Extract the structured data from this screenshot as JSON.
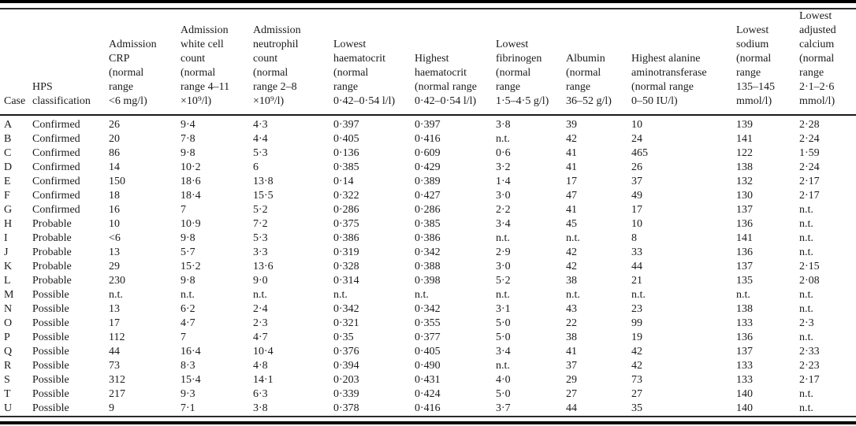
{
  "text_color": "#1b1b1b",
  "rule_color": "#000000",
  "not_tested_abbreviation": "n.t.",
  "table": {
    "columns": [
      {
        "name": "case",
        "lines": [
          "Case"
        ]
      },
      {
        "name": "hps-classification",
        "lines": [
          "HPS",
          "classification"
        ]
      },
      {
        "name": "admission-crp",
        "lines": [
          "Admission",
          "CRP",
          "(normal",
          "range",
          "<6 mg/l)"
        ]
      },
      {
        "name": "admission-white-cell-count",
        "lines": [
          "Admission",
          "white cell",
          "count",
          "(normal",
          "range 4–11",
          "×10⁹/l)"
        ]
      },
      {
        "name": "admission-neutrophil-count",
        "lines": [
          "Admission",
          "neutrophil",
          "count",
          "(normal",
          "range 2–8",
          "×10⁹/l)"
        ]
      },
      {
        "name": "lowest-haematocrit",
        "lines": [
          "Lowest",
          "haematocrit",
          "(normal",
          "range",
          "0·42–0·54 l/l)"
        ]
      },
      {
        "name": "highest-haematocrit",
        "lines": [
          "Highest",
          "haematocrit",
          "(normal range",
          "0·42–0·54 l/l)"
        ]
      },
      {
        "name": "lowest-fibrinogen",
        "lines": [
          "Lowest",
          "fibrinogen",
          "(normal",
          "range",
          "1·5–4·5 g/l)"
        ]
      },
      {
        "name": "albumin",
        "lines": [
          "Albumin",
          "(normal",
          "range",
          "36–52 g/l)"
        ]
      },
      {
        "name": "highest-alanine-aminotransferase",
        "lines": [
          "Highest alanine",
          "aminotransferase",
          "(normal range",
          "0–50 IU/l)"
        ]
      },
      {
        "name": "lowest-sodium",
        "lines": [
          "Lowest",
          "sodium",
          "(normal",
          "range",
          "135–145",
          "mmol/l)"
        ]
      },
      {
        "name": "lowest-adjusted-calcium",
        "lines": [
          "Lowest",
          "adjusted",
          "calcium",
          "(normal",
          "range",
          "2·1–2·6",
          "mmol/l)"
        ]
      }
    ],
    "rows": [
      [
        "A",
        "Confirmed",
        "26",
        "9·4",
        "4·3",
        "0·397",
        "0·397",
        "3·8",
        "39",
        "10",
        "139",
        "2·28"
      ],
      [
        "B",
        "Confirmed",
        "20",
        "7·8",
        "4·4",
        "0·405",
        "0·416",
        "n.t.",
        "42",
        "24",
        "141",
        "2·24"
      ],
      [
        "C",
        "Confirmed",
        "86",
        "9·8",
        "5·3",
        "0·136",
        "0·609",
        "0·6",
        "41",
        "465",
        "122",
        "1·59"
      ],
      [
        "D",
        "Confirmed",
        "14",
        "10·2",
        "6",
        "0·385",
        "0·429",
        "3·2",
        "41",
        "26",
        "138",
        "2·24"
      ],
      [
        "E",
        "Confirmed",
        "150",
        "18·6",
        "13·8",
        "0·14",
        "0·389",
        "1·4",
        "17",
        "37",
        "132",
        "2·17"
      ],
      [
        "F",
        "Confirmed",
        "18",
        "18·4",
        "15·5",
        "0·322",
        "0·427",
        "3·0",
        "47",
        "49",
        "130",
        "2·17"
      ],
      [
        "G",
        "Confirmed",
        "16",
        "7",
        "5·2",
        "0·286",
        "0·286",
        "2·2",
        "41",
        "17",
        "137",
        "n.t."
      ],
      [
        "H",
        "Probable",
        "10",
        "10·9",
        "7·2",
        "0·375",
        "0·385",
        "3·4",
        "45",
        "10",
        "136",
        "n.t."
      ],
      [
        "I",
        "Probable",
        "<6",
        "9·8",
        "5·3",
        "0·386",
        "0·386",
        "n.t.",
        "n.t.",
        "8",
        "141",
        "n.t."
      ],
      [
        "J",
        "Probable",
        "13",
        "5·7",
        "3·3",
        "0·319",
        "0·342",
        "2·9",
        "42",
        "33",
        "136",
        "n.t."
      ],
      [
        "K",
        "Probable",
        "29",
        "15·2",
        "13·6",
        "0·328",
        "0·388",
        "3·0",
        "42",
        "44",
        "137",
        "2·15"
      ],
      [
        "L",
        "Probable",
        "230",
        "9·8",
        "9·0",
        "0·314",
        "0·398",
        "5·2",
        "38",
        "21",
        "135",
        "2·08"
      ],
      [
        "M",
        "Possible",
        "n.t.",
        "n.t.",
        "n.t.",
        "n.t.",
        "n.t.",
        "n.t.",
        "n.t.",
        "n.t.",
        "n.t.",
        "n.t."
      ],
      [
        "N",
        "Possible",
        "13",
        "6·2",
        "2·4",
        "0·342",
        "0·342",
        "3·1",
        "43",
        "23",
        "138",
        "n.t."
      ],
      [
        "O",
        "Possible",
        "17",
        "4·7",
        "2·3",
        "0·321",
        "0·355",
        "5·0",
        "22",
        "99",
        "133",
        "2·3"
      ],
      [
        "P",
        "Possible",
        "112",
        "7",
        "4·7",
        "0·35",
        "0·377",
        "5·0",
        "38",
        "19",
        "136",
        "n.t."
      ],
      [
        "Q",
        "Possible",
        "44",
        "16·4",
        "10·4",
        "0·376",
        "0·405",
        "3·4",
        "41",
        "42",
        "137",
        "2·33"
      ],
      [
        "R",
        "Possible",
        "73",
        "8·3",
        "4·8",
        "0·394",
        "0·490",
        "n.t.",
        "37",
        "42",
        "133",
        "2·23"
      ],
      [
        "S",
        "Possible",
        "312",
        "15·4",
        "14·1",
        "0·203",
        "0·431",
        "4·0",
        "29",
        "73",
        "133",
        "2·17"
      ],
      [
        "T",
        "Possible",
        "217",
        "9·3",
        "6·3",
        "0·339",
        "0·424",
        "5·0",
        "27",
        "27",
        "140",
        "n.t."
      ],
      [
        "U",
        "Possible",
        "9",
        "7·1",
        "3·8",
        "0·378",
        "0·416",
        "3·7",
        "44",
        "35",
        "140",
        "n.t."
      ]
    ]
  }
}
